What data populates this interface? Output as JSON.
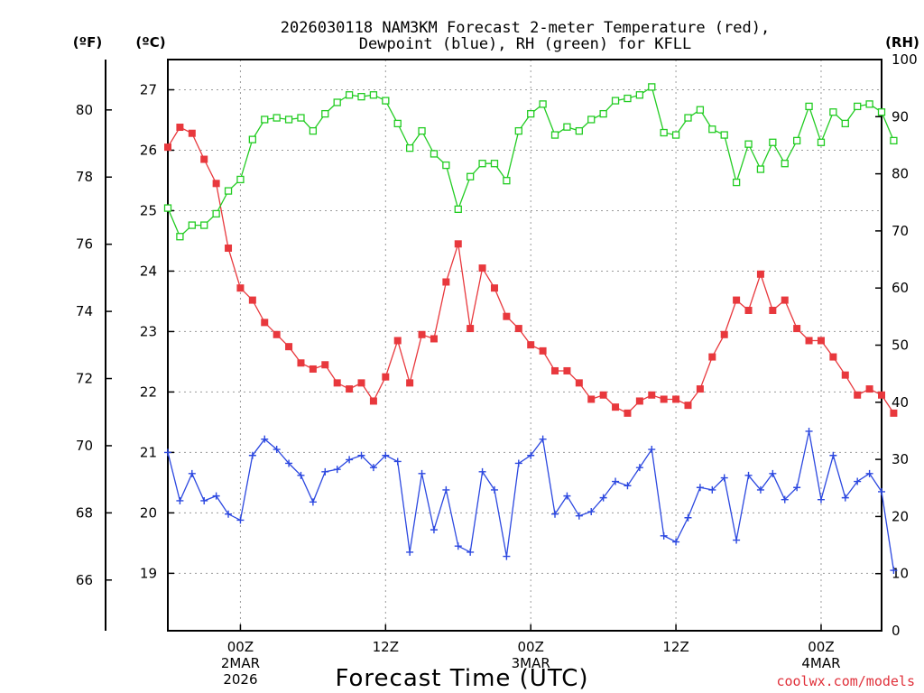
{
  "chart_data": {
    "type": "line",
    "title_line1": "2026030118 NAM3KM Forecast 2-meter Temperature (red),",
    "title_line2": "Dewpoint (blue), RH (green) for KFLL",
    "xlabel": "Forecast Time (UTC)",
    "credit": "coolwx.com/models",
    "units": {
      "fahrenheit": "(ºF)",
      "celsius": "(ºC)",
      "rh": "(RH)"
    },
    "axes": {
      "celsius": {
        "range": [
          18.05,
          27.5
        ],
        "ticks": [
          "19",
          "20",
          "21",
          "22",
          "23",
          "24",
          "25",
          "26",
          "27"
        ]
      },
      "fahrenheit": {
        "ticks": [
          "66",
          "68",
          "70",
          "72",
          "74",
          "76",
          "78",
          "80"
        ]
      },
      "rh": {
        "range": [
          0,
          100
        ],
        "ticks": [
          "0",
          "10",
          "20",
          "30",
          "40",
          "50",
          "60",
          "70",
          "80",
          "90",
          "100"
        ]
      },
      "hours": {
        "range": [
          -6,
          53
        ]
      }
    },
    "x_ticks": [
      {
        "hour": 0,
        "label": "00Z",
        "sub1": "2MAR",
        "sub2": "2026"
      },
      {
        "hour": 12,
        "label": "12Z",
        "sub1": "",
        "sub2": ""
      },
      {
        "hour": 24,
        "label": "00Z",
        "sub1": "3MAR",
        "sub2": ""
      },
      {
        "hour": 36,
        "label": "12Z",
        "sub1": "",
        "sub2": ""
      },
      {
        "hour": 48,
        "label": "00Z",
        "sub1": "4MAR",
        "sub2": ""
      }
    ],
    "hours_start": -6,
    "series": [
      {
        "name": "2-meter Temperature",
        "unit": "C",
        "color": "#e8383d",
        "marker": "filled-square",
        "values": [
          26.05,
          26.38,
          26.28,
          25.85,
          25.45,
          24.38,
          23.72,
          23.52,
          23.15,
          22.95,
          22.75,
          22.48,
          22.38,
          22.45,
          22.15,
          22.05,
          22.15,
          21.85,
          22.25,
          22.85,
          22.15,
          22.95,
          22.88,
          23.82,
          24.45,
          23.05,
          24.05,
          23.72,
          23.25,
          23.05,
          22.78,
          22.68,
          22.35,
          22.35,
          22.15,
          21.88,
          21.95,
          21.75,
          21.65,
          21.85,
          21.95,
          21.88,
          21.88,
          21.78,
          22.05,
          22.58,
          22.95,
          23.52,
          23.35,
          23.95,
          23.35,
          23.52,
          23.05,
          22.85,
          22.85,
          22.58,
          22.28,
          21.95,
          22.05,
          21.95,
          21.65
        ]
      },
      {
        "name": "Dewpoint",
        "unit": "C",
        "color": "#2c48e0",
        "marker": "plus",
        "values": [
          21.0,
          20.2,
          20.65,
          20.2,
          20.28,
          19.98,
          19.88,
          20.95,
          21.22,
          21.05,
          20.82,
          20.62,
          20.18,
          20.68,
          20.72,
          20.88,
          20.95,
          20.75,
          20.95,
          20.85,
          19.35,
          20.65,
          19.72,
          20.38,
          19.45,
          19.35,
          20.68,
          20.38,
          19.28,
          20.82,
          20.95,
          21.22,
          19.98,
          20.28,
          19.95,
          20.02,
          20.25,
          20.52,
          20.45,
          20.75,
          21.05,
          19.62,
          19.52,
          19.92,
          20.42,
          20.38,
          20.58,
          19.55,
          20.62,
          20.38,
          20.65,
          20.22,
          20.42,
          21.35,
          20.22,
          20.95,
          20.25,
          20.52,
          20.65,
          20.35,
          19.05
        ]
      },
      {
        "name": "RH",
        "unit": "%",
        "color": "#22cc22",
        "marker": "open-square",
        "values": [
          74,
          69,
          71,
          71,
          73,
          77,
          79,
          86,
          89.5,
          89.8,
          89.5,
          89.8,
          87.5,
          90.5,
          92.5,
          93.8,
          93.5,
          93.8,
          92.8,
          88.8,
          84.5,
          87.5,
          83.5,
          81.5,
          73.8,
          79.5,
          81.8,
          81.8,
          78.8,
          87.5,
          90.5,
          92.2,
          86.8,
          88.2,
          87.5,
          89.5,
          90.5,
          92.8,
          93.2,
          93.8,
          95.2,
          87.2,
          86.8,
          89.8,
          91.2,
          87.8,
          86.8,
          78.5,
          85.2,
          80.8,
          85.5,
          81.8,
          85.8,
          91.8,
          85.5,
          90.8,
          88.8,
          91.8,
          92.2,
          90.8,
          85.8
        ]
      }
    ]
  }
}
